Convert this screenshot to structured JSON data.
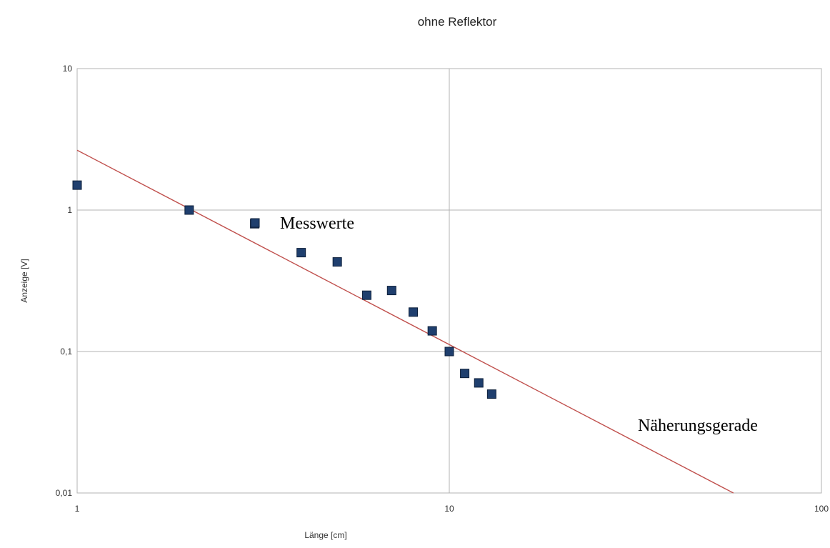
{
  "chart_data": {
    "type": "scatter",
    "title": "ohne Reflektor",
    "xlabel": "Länge [cm]",
    "ylabel": "Anzeige [V]",
    "xscale": "log",
    "yscale": "log",
    "xlim": [
      1,
      100
    ],
    "ylim": [
      0.01,
      10
    ],
    "grid": true,
    "x_ticks": [
      "1",
      "10",
      "100"
    ],
    "y_ticks": [
      "10",
      "1",
      "0,1",
      "0,01"
    ],
    "series": [
      {
        "name": "Messwerte",
        "type": "scatter",
        "color": "#1f3f6e",
        "x": [
          1,
          2,
          3,
          4,
          5,
          6,
          7,
          8,
          9,
          10,
          11,
          12,
          13
        ],
        "y": [
          1.5,
          1.0,
          0.8,
          0.5,
          0.43,
          0.25,
          0.27,
          0.19,
          0.14,
          0.1,
          0.07,
          0.06,
          0.05
        ]
      },
      {
        "name": "Näherungsgerade",
        "type": "line",
        "color": "#c0504d",
        "x": [
          1,
          58
        ],
        "y": [
          2.65,
          0.01
        ]
      }
    ],
    "annotations": [
      "Messwerte",
      "Näherungsgerade"
    ]
  }
}
